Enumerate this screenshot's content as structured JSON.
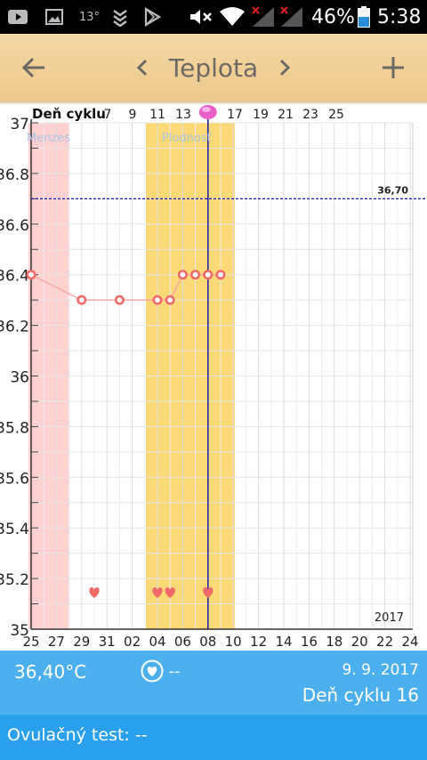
{
  "status_bar": {
    "temperature": "13°",
    "battery": "46%",
    "time": "5:38",
    "icons": [
      "youtube-icon",
      "image-icon",
      "temperature-label",
      "shield-icon",
      "play-store-icon",
      "mute-icon",
      "wifi-icon",
      "signal-icon",
      "signal-icon",
      "battery-icon"
    ]
  },
  "app_bar": {
    "title": "Teplota",
    "back_icon": "arrow-left-icon",
    "prev_icon": "chevron-left-icon",
    "next_icon": "chevron-right-icon",
    "add_icon": "plus-icon"
  },
  "chart_data": {
    "type": "line",
    "cycle_label": "Deň cyklu",
    "cycle_ticks": [
      "7",
      "9",
      "11",
      "13",
      "17",
      "19",
      "21",
      "23",
      "25"
    ],
    "date_ticks": [
      "25",
      "27",
      "29",
      "31",
      "02",
      "04",
      "06",
      "08",
      "10",
      "12",
      "14",
      "16",
      "18",
      "20",
      "22",
      "24"
    ],
    "y_ticks": [
      "37",
      "36.8",
      "36.6",
      "36.4",
      "36.2",
      "36",
      "35.8",
      "35.6",
      "35.4",
      "35.2",
      "35"
    ],
    "ylim": [
      35,
      37
    ],
    "year": "2017",
    "menses_label": "Menzes",
    "fertile_label": "Plodnosť",
    "threshold": {
      "value": 36.7,
      "label": "36,70"
    },
    "series": [
      {
        "x": [
          "25",
          "29",
          "01",
          "04",
          "05",
          "06",
          "07",
          "08",
          "09"
        ],
        "values": [
          36.4,
          36.3,
          36.3,
          36.3,
          36.3,
          36.4,
          36.4,
          36.4,
          36.4
        ]
      }
    ],
    "heart_markers": [
      "30",
      "04",
      "05",
      "08"
    ],
    "colors": {
      "line": "#f7a7a7",
      "point": "#f06a6a",
      "menses": "#ffd1d1",
      "fertile": "#fbd977",
      "threshold": "#1a1aa8",
      "today": "#1a1aa8"
    }
  },
  "info": {
    "temperature": "36,40°C",
    "intercourse_value": "--",
    "date": "9. 9. 2017",
    "cycle_day": "Deň cyklu 16"
  },
  "ovulation": {
    "text": "Ovulačný test: --"
  }
}
